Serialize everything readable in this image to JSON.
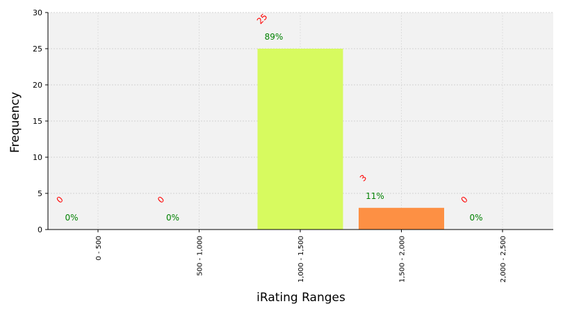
{
  "chart_data": {
    "type": "bar",
    "xlabel": "iRating Ranges",
    "ylabel": "Frequency",
    "ylim": [
      0,
      30
    ],
    "yticks": [
      0,
      5,
      10,
      15,
      20,
      25,
      30
    ],
    "categories": [
      "0 - 500",
      "500 - 1,000",
      "1,000 - 1,500",
      "1,500 - 2,000",
      "2,000 - 2,500"
    ],
    "values": [
      0,
      0,
      25,
      3,
      0
    ],
    "count_labels": [
      "0",
      "0",
      "25",
      "3",
      "0"
    ],
    "percent_labels": [
      "0%",
      "0%",
      "89%",
      "11%",
      "0%"
    ],
    "bar_colors": [
      "#d7fa5f",
      "#d7fa5f",
      "#d7fa5f",
      "#fd9044",
      "#d7fa5f"
    ],
    "count_label_color": "#ff0000",
    "percent_label_color": "#008000",
    "plot_background": "#f2f2f2",
    "grid": true
  }
}
